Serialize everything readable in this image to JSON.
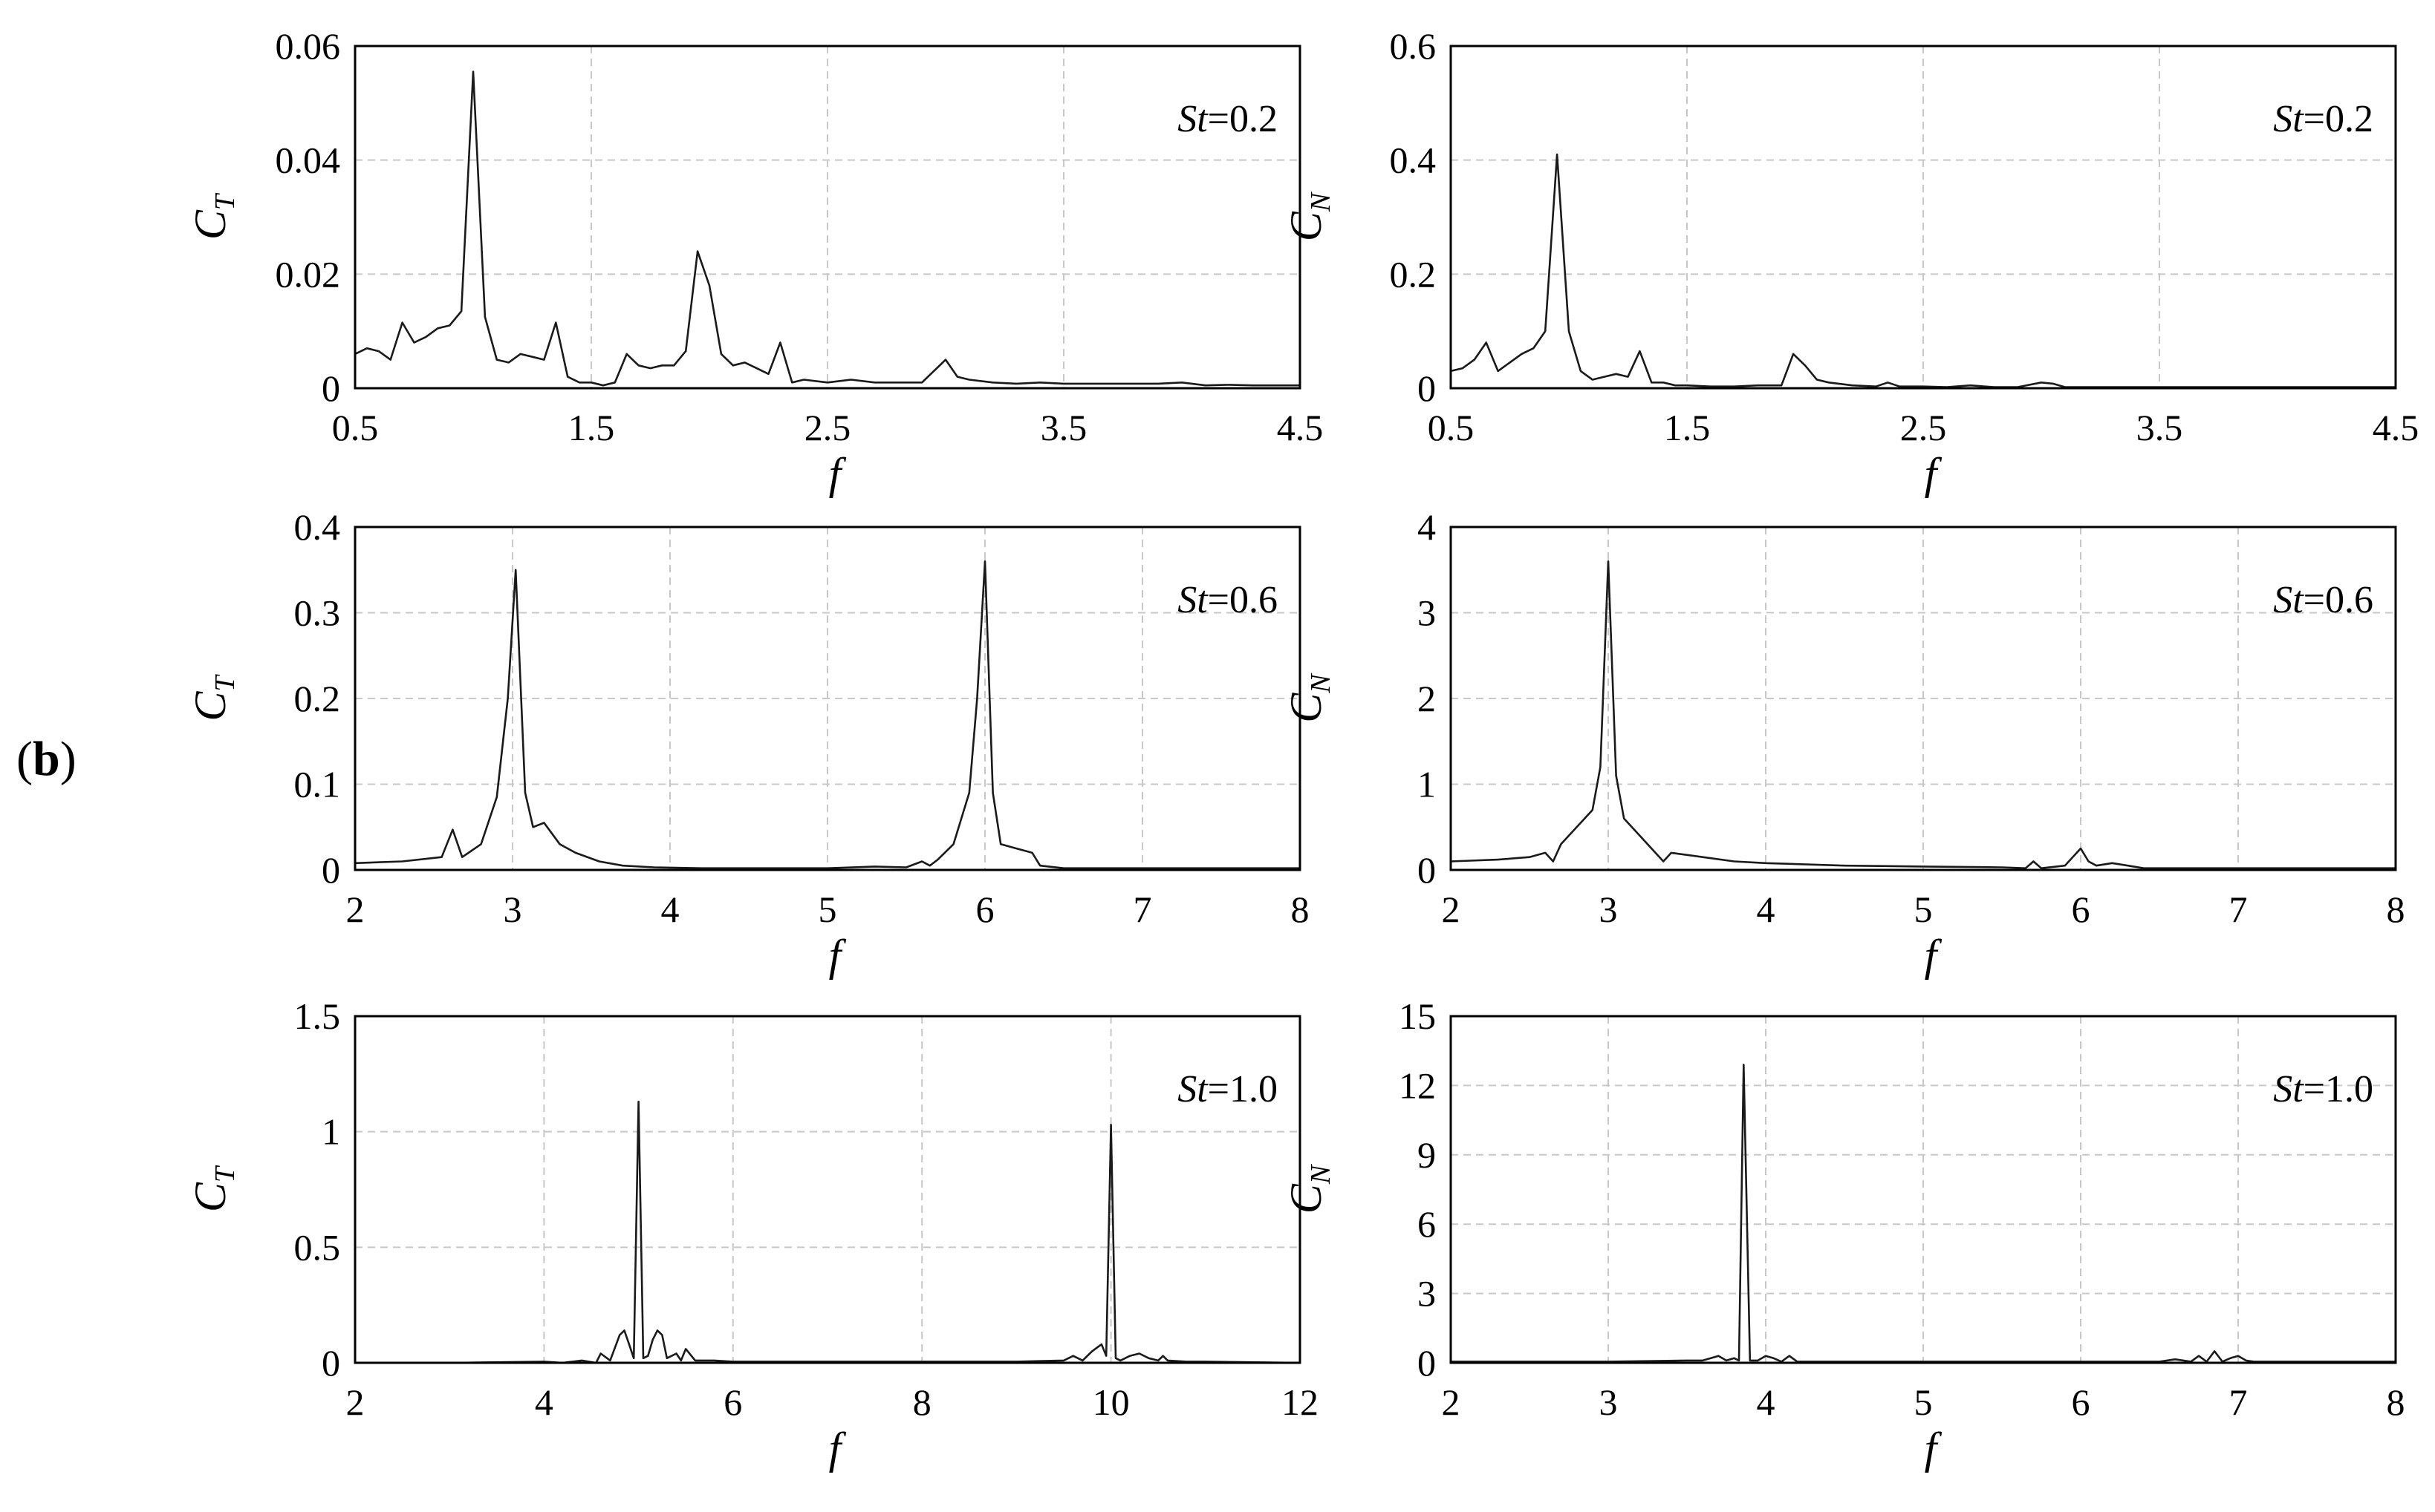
{
  "figure": {
    "panel_label": {
      "open": "(",
      "letter": "b",
      "close": ")"
    }
  },
  "chart_data": [
    {
      "type": "line",
      "id": "ct-st02",
      "annotation": {
        "var": "St",
        "text": "=0.2"
      },
      "xlabel": "f",
      "ylabel": {
        "main": "C",
        "sub": "T"
      },
      "xlim": [
        0.5,
        4.5
      ],
      "ylim": [
        0,
        0.06
      ],
      "xticks": [
        "0.5",
        "1.5",
        "2.5",
        "3.5",
        "4.5"
      ],
      "yticks": [
        "0",
        "0.02",
        "0.04",
        "0.06"
      ],
      "grid": true,
      "series": [
        {
          "x": [
            0.5,
            0.55,
            0.6,
            0.65,
            0.7,
            0.75,
            0.8,
            0.85,
            0.9,
            0.95,
            1.0,
            1.05,
            1.1,
            1.15,
            1.2,
            1.25,
            1.3,
            1.35,
            1.4,
            1.45,
            1.5,
            1.55,
            1.6,
            1.65,
            1.7,
            1.75,
            1.8,
            1.85,
            1.9,
            1.95,
            2.0,
            2.05,
            2.1,
            2.15,
            2.2,
            2.25,
            2.3,
            2.35,
            2.4,
            2.5,
            2.6,
            2.7,
            2.8,
            2.9,
            2.95,
            3.0,
            3.05,
            3.1,
            3.2,
            3.3,
            3.4,
            3.5,
            3.6,
            3.7,
            3.8,
            3.9,
            4.0,
            4.1,
            4.2,
            4.3,
            4.4,
            4.5
          ],
          "y": [
            0.006,
            0.007,
            0.0065,
            0.005,
            0.0115,
            0.008,
            0.009,
            0.0105,
            0.011,
            0.0135,
            0.0555,
            0.0125,
            0.005,
            0.0045,
            0.006,
            0.0055,
            0.005,
            0.0115,
            0.002,
            0.001,
            0.001,
            0.0005,
            0.001,
            0.006,
            0.004,
            0.0035,
            0.004,
            0.004,
            0.0065,
            0.024,
            0.018,
            0.006,
            0.004,
            0.0045,
            0.0035,
            0.0025,
            0.008,
            0.001,
            0.0015,
            0.001,
            0.0015,
            0.001,
            0.001,
            0.001,
            0.003,
            0.005,
            0.002,
            0.0015,
            0.001,
            0.0008,
            0.001,
            0.0008,
            0.0008,
            0.0008,
            0.0008,
            0.0008,
            0.001,
            0.0005,
            0.0006,
            0.0005,
            0.0005,
            0.0005
          ]
        }
      ]
    },
    {
      "type": "line",
      "id": "cn-st02",
      "annotation": {
        "var": "St",
        "text": "=0.2"
      },
      "xlabel": "f",
      "ylabel": {
        "main": "C",
        "sub": "N"
      },
      "xlim": [
        0.5,
        4.5
      ],
      "ylim": [
        0,
        0.6
      ],
      "xticks": [
        "0.5",
        "1.5",
        "2.5",
        "3.5",
        "4.5"
      ],
      "yticks": [
        "0",
        "0.2",
        "0.4",
        "0.6"
      ],
      "grid": true,
      "series": [
        {
          "x": [
            0.5,
            0.55,
            0.6,
            0.65,
            0.7,
            0.75,
            0.8,
            0.85,
            0.9,
            0.95,
            1.0,
            1.05,
            1.1,
            1.15,
            1.2,
            1.25,
            1.3,
            1.35,
            1.4,
            1.45,
            1.5,
            1.6,
            1.7,
            1.8,
            1.9,
            1.95,
            2.0,
            2.05,
            2.1,
            2.2,
            2.3,
            2.35,
            2.4,
            2.5,
            2.6,
            2.7,
            2.8,
            2.9,
            3.0,
            3.05,
            3.1,
            3.2,
            3.4,
            3.6,
            3.8,
            4.0,
            4.2,
            4.5
          ],
          "y": [
            0.03,
            0.035,
            0.05,
            0.08,
            0.03,
            0.045,
            0.06,
            0.07,
            0.1,
            0.41,
            0.1,
            0.03,
            0.015,
            0.02,
            0.025,
            0.02,
            0.065,
            0.01,
            0.01,
            0.005,
            0.005,
            0.003,
            0.003,
            0.005,
            0.005,
            0.06,
            0.04,
            0.015,
            0.01,
            0.005,
            0.003,
            0.01,
            0.003,
            0.003,
            0.002,
            0.005,
            0.002,
            0.002,
            0.01,
            0.008,
            0.002,
            0.002,
            0.002,
            0.002,
            0.002,
            0.002,
            0.002,
            0.002
          ]
        }
      ]
    },
    {
      "type": "line",
      "id": "ct-st06",
      "annotation": {
        "var": "St",
        "text": "=0.6"
      },
      "xlabel": "f",
      "ylabel": {
        "main": "C",
        "sub": "T"
      },
      "xlim": [
        2,
        8
      ],
      "ylim": [
        0,
        0.4
      ],
      "xticks": [
        "2",
        "3",
        "4",
        "5",
        "6",
        "7",
        "8"
      ],
      "yticks": [
        "0",
        "0.1",
        "0.2",
        "0.3",
        "0.4"
      ],
      "grid": true,
      "series": [
        {
          "x": [
            2.0,
            2.3,
            2.55,
            2.62,
            2.68,
            2.8,
            2.9,
            2.97,
            3.02,
            3.08,
            3.13,
            3.2,
            3.3,
            3.4,
            3.55,
            3.7,
            3.9,
            4.2,
            4.5,
            5.0,
            5.3,
            5.5,
            5.6,
            5.65,
            5.7,
            5.8,
            5.9,
            5.95,
            6.0,
            6.05,
            6.1,
            6.2,
            6.3,
            6.35,
            6.5,
            7.0,
            8.0
          ],
          "y": [
            0.008,
            0.01,
            0.015,
            0.047,
            0.015,
            0.03,
            0.085,
            0.2,
            0.35,
            0.09,
            0.05,
            0.055,
            0.03,
            0.02,
            0.01,
            0.005,
            0.003,
            0.002,
            0.002,
            0.002,
            0.004,
            0.003,
            0.01,
            0.005,
            0.012,
            0.03,
            0.09,
            0.2,
            0.36,
            0.09,
            0.03,
            0.025,
            0.02,
            0.005,
            0.002,
            0.002,
            0.002
          ]
        }
      ]
    },
    {
      "type": "line",
      "id": "cn-st06",
      "annotation": {
        "var": "St",
        "text": "=0.6"
      },
      "xlabel": "f",
      "ylabel": {
        "main": "C",
        "sub": "N"
      },
      "xlim": [
        2,
        8
      ],
      "ylim": [
        0,
        4
      ],
      "xticks": [
        "2",
        "3",
        "4",
        "5",
        "6",
        "7",
        "8"
      ],
      "yticks": [
        "0",
        "1",
        "2",
        "3",
        "4"
      ],
      "grid": true,
      "series": [
        {
          "x": [
            2.0,
            2.3,
            2.5,
            2.6,
            2.65,
            2.7,
            2.8,
            2.9,
            2.95,
            3.0,
            3.05,
            3.1,
            3.2,
            3.3,
            3.35,
            3.4,
            3.6,
            3.8,
            4.0,
            4.5,
            5.0,
            5.5,
            5.65,
            5.7,
            5.75,
            5.9,
            6.0,
            6.05,
            6.1,
            6.2,
            6.3,
            6.4,
            7.0,
            8.0
          ],
          "y": [
            0.1,
            0.12,
            0.15,
            0.2,
            0.1,
            0.3,
            0.5,
            0.7,
            1.2,
            3.6,
            1.1,
            0.6,
            0.4,
            0.2,
            0.1,
            0.2,
            0.15,
            0.1,
            0.08,
            0.05,
            0.04,
            0.03,
            0.02,
            0.1,
            0.02,
            0.05,
            0.25,
            0.1,
            0.05,
            0.08,
            0.05,
            0.02,
            0.02,
            0.02
          ]
        }
      ]
    },
    {
      "type": "line",
      "id": "ct-st10",
      "annotation": {
        "var": "St",
        "text": "=1.0"
      },
      "xlabel": "f",
      "ylabel": {
        "main": "C",
        "sub": "T"
      },
      "xlim": [
        2,
        12
      ],
      "ylim": [
        0,
        1.5
      ],
      "xticks": [
        "2",
        "4",
        "6",
        "8",
        "10",
        "12"
      ],
      "yticks": [
        "0",
        "0.5",
        "1",
        "1.5"
      ],
      "grid": true,
      "series": [
        {
          "x": [
            2.0,
            3.0,
            4.0,
            4.2,
            4.4,
            4.55,
            4.6,
            4.7,
            4.8,
            4.85,
            4.9,
            4.95,
            5.0,
            5.05,
            5.1,
            5.15,
            5.2,
            5.25,
            5.3,
            5.4,
            5.45,
            5.5,
            5.6,
            5.8,
            6.0,
            7.0,
            8.0,
            9.0,
            9.5,
            9.6,
            9.7,
            9.8,
            9.9,
            9.95,
            10.0,
            10.05,
            10.1,
            10.2,
            10.3,
            10.4,
            10.5,
            10.55,
            10.6,
            10.8,
            11.0,
            12.0
          ],
          "y": [
            0.0,
            0.0,
            0.005,
            0.0,
            0.01,
            0.0,
            0.04,
            0.01,
            0.12,
            0.14,
            0.08,
            0.02,
            1.13,
            0.02,
            0.03,
            0.1,
            0.14,
            0.12,
            0.02,
            0.04,
            0.01,
            0.06,
            0.01,
            0.01,
            0.005,
            0.005,
            0.005,
            0.005,
            0.01,
            0.03,
            0.01,
            0.05,
            0.08,
            0.03,
            1.03,
            0.02,
            0.01,
            0.03,
            0.04,
            0.02,
            0.01,
            0.03,
            0.01,
            0.005,
            0.005,
            0.0
          ]
        }
      ]
    },
    {
      "type": "line",
      "id": "cn-st10",
      "annotation": {
        "var": "St",
        "text": "=1.0"
      },
      "xlabel": "f",
      "ylabel": {
        "main": "C",
        "sub": "N"
      },
      "xlim": [
        2,
        8
      ],
      "ylim": [
        0,
        15
      ],
      "xticks": [
        "2",
        "3",
        "4",
        "5",
        "6",
        "7",
        "8"
      ],
      "yticks": [
        "0",
        "3",
        "6",
        "9",
        "12",
        "15"
      ],
      "grid": true,
      "series": [
        {
          "x": [
            2.0,
            3.0,
            3.5,
            3.6,
            3.7,
            3.75,
            3.8,
            3.83,
            3.86,
            3.9,
            3.95,
            4.0,
            4.05,
            4.1,
            4.15,
            4.2,
            4.3,
            5.0,
            6.0,
            6.5,
            6.6,
            6.7,
            6.75,
            6.8,
            6.85,
            6.9,
            6.95,
            7.0,
            7.05,
            7.1,
            7.2,
            8.0
          ],
          "y": [
            0.05,
            0.05,
            0.1,
            0.1,
            0.3,
            0.1,
            0.2,
            0.1,
            12.9,
            0.1,
            0.1,
            0.3,
            0.2,
            0.05,
            0.3,
            0.05,
            0.05,
            0.05,
            0.05,
            0.05,
            0.15,
            0.05,
            0.3,
            0.05,
            0.5,
            0.05,
            0.2,
            0.3,
            0.1,
            0.05,
            0.05,
            0.05
          ]
        }
      ]
    }
  ]
}
